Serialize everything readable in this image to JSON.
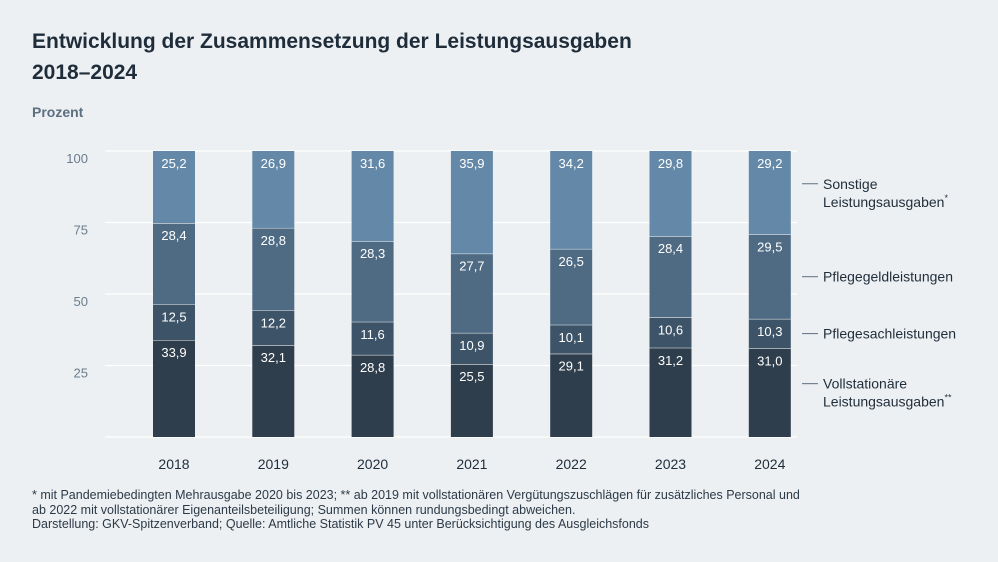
{
  "title_line1": "Entwicklung der Zusammensetzung der Leistungsausgaben",
  "title_line2": "2018–2024",
  "footnotes": {
    "line1": "* mit Pandemiebedingten Mehrausgabe 2020 bis 2023; ** ab 2019 mit vollstationären Vergütungszuschlägen für zusätzliches Personal und",
    "line2": "ab 2022 mit vollstationärer Eigenanteilsbeteiligung; Summen können rundungsbedingt abweichen.",
    "line3": "Darstellung: GKV-Spitzenverband; Quelle: Amtliche Statistik PV 45 unter Berücksichtigung des Ausgleichsfonds"
  },
  "chart_data": {
    "type": "bar",
    "stacked": true,
    "title": "Entwicklung der Zusammensetzung der Leistungsausgaben 2018–2024",
    "xlabel": "",
    "ylabel": "Prozent",
    "ylim": [
      0,
      100
    ],
    "yticks": [
      25,
      50,
      75,
      100
    ],
    "grid": true,
    "legend_position": "right",
    "categories": [
      "2018",
      "2019",
      "2020",
      "2021",
      "2022",
      "2023",
      "2024"
    ],
    "series": [
      {
        "name": "Vollstationäre Leistungsausgaben**",
        "legend_lines": [
          "Vollstationäre",
          "Leistungsausgaben"
        ],
        "legend_sup": "**",
        "color": "#2f3e4c",
        "values": [
          33.9,
          32.1,
          28.8,
          25.5,
          29.1,
          31.2,
          31.0
        ],
        "labels": [
          "33,9",
          "32,1",
          "28,8",
          "25,5",
          "29,1",
          "31,2",
          "31,0"
        ]
      },
      {
        "name": "Pflegesachleistungen",
        "legend_lines": [
          "Pflegesachleistungen"
        ],
        "legend_sup": "",
        "color": "#3d5468",
        "values": [
          12.5,
          12.2,
          11.6,
          10.9,
          10.1,
          10.6,
          10.3
        ],
        "labels": [
          "12,5",
          "12,2",
          "11,6",
          "10,9",
          "10,1",
          "10,6",
          "10,3"
        ]
      },
      {
        "name": "Pflegegeldleistungen",
        "legend_lines": [
          "Pflegegeldleistungen"
        ],
        "legend_sup": "",
        "color": "#4f6b84",
        "values": [
          28.4,
          28.8,
          28.3,
          27.7,
          26.5,
          28.4,
          29.5
        ],
        "labels": [
          "28,4",
          "28,8",
          "28,3",
          "27,7",
          "26,5",
          "28,4",
          "29,5"
        ]
      },
      {
        "name": "Sonstige Leistungsausgaben*",
        "legend_lines": [
          "Sonstige",
          "Leistungsausgaben"
        ],
        "legend_sup": "*",
        "color": "#6489a8",
        "values": [
          25.2,
          26.9,
          31.6,
          35.9,
          34.2,
          29.8,
          29.2
        ],
        "labels": [
          "25,2",
          "26,9",
          "31,6",
          "35,9",
          "34,2",
          "29,8",
          "29,2"
        ]
      }
    ]
  }
}
